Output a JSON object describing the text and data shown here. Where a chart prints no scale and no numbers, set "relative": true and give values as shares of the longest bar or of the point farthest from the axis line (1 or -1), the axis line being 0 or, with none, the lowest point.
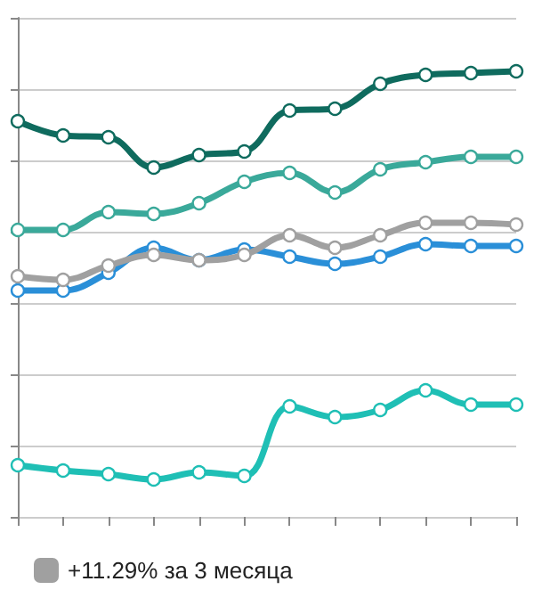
{
  "chart_data": {
    "type": "line",
    "relative": true,
    "categories": [
      null,
      null,
      null,
      null,
      null,
      null,
      null,
      null,
      null,
      null,
      null,
      null
    ],
    "series": [
      {
        "color": "#0f6b5e",
        "values": [
          0.888,
          0.856,
          0.852,
          0.784,
          0.812,
          0.82,
          0.912,
          0.916,
          0.972,
          0.992,
          0.996,
          1
        ]
      },
      {
        "color": "#3aa99a",
        "values": [
          0.644,
          0.644,
          0.684,
          0.68,
          0.704,
          0.752,
          0.772,
          0.728,
          0.78,
          0.796,
          0.808,
          0.808
        ]
      },
      {
        "name": "+11.29% за 3 месяца",
        "color": "#a0a0a0",
        "values": [
          0.54,
          0.532,
          0.564,
          0.588,
          0.576,
          0.588,
          0.632,
          0.604,
          0.632,
          0.66,
          0.66,
          0.656
        ]
      },
      {
        "color": "#2a8fd8",
        "values": [
          0.508,
          0.508,
          0.548,
          0.604,
          0.576,
          0.6,
          0.584,
          0.568,
          0.584,
          0.612,
          0.608,
          0.608
        ]
      },
      {
        "color": "#1fbfb5",
        "values": [
          0.116,
          0.104,
          0.096,
          0.084,
          0.1,
          0.092,
          0.248,
          0.224,
          0.24,
          0.284,
          0.252,
          0.252
        ]
      }
    ],
    "grid": "y",
    "legend": "bottom left",
    "marker": "circle",
    "line_style": "solid"
  }
}
